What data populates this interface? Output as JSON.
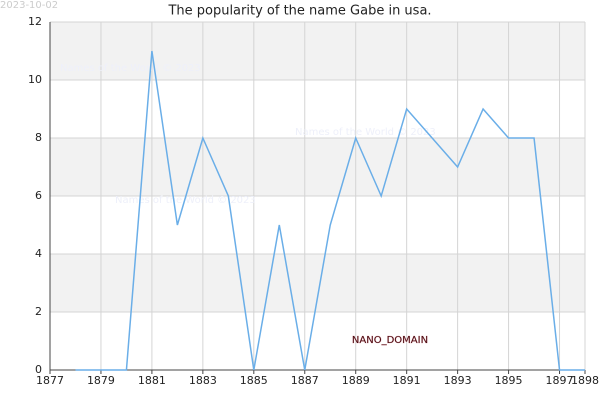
{
  "chart_data": {
    "type": "line",
    "title": "The popularity of the name Gabe in usa.",
    "x": [
      1878,
      1879,
      1880,
      1881,
      1882,
      1883,
      1884,
      1885,
      1886,
      1887,
      1888,
      1889,
      1890,
      1891,
      1892,
      1893,
      1894,
      1895,
      1896,
      1897,
      1898
    ],
    "values": [
      0,
      0,
      0,
      11,
      5,
      8,
      6,
      0,
      5,
      0,
      5,
      8,
      6,
      9,
      8,
      7,
      9,
      8,
      8,
      0,
      0
    ],
    "color": "#6aaee8",
    "xlim": [
      1877,
      1898
    ],
    "xticks": [
      1877,
      1879,
      1881,
      1883,
      1885,
      1887,
      1889,
      1891,
      1893,
      1895,
      1897,
      1898
    ],
    "ylim": [
      0,
      12
    ],
    "yticks": [
      0,
      2,
      4,
      6,
      8,
      10,
      12
    ],
    "grid": true,
    "band_color": "#f2f2f2",
    "date": "2023-10-02",
    "watermarks": [
      "Names of the World © 2023",
      "Names of the World © 2023",
      "Names of the World © 2023"
    ],
    "domain": "NANO_DOMAIN"
  }
}
